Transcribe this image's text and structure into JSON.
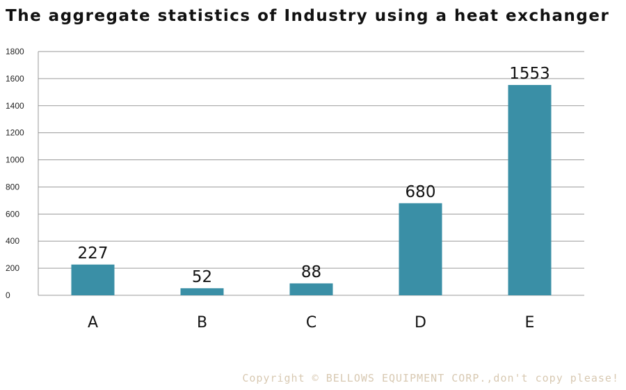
{
  "chart_data": {
    "type": "bar",
    "title": "The aggregate statistics of Industry using a heat exchanger",
    "categories": [
      "A",
      "B",
      "C",
      "D",
      "E"
    ],
    "values": [
      227,
      52,
      88,
      680,
      1553
    ],
    "data_labels": [
      "227",
      "52",
      "88",
      "680",
      "1553"
    ],
    "yticks": [
      0,
      200,
      400,
      600,
      800,
      1000,
      1200,
      1400,
      1600,
      1800
    ],
    "ylim": [
      0,
      1800
    ],
    "xlabel": "",
    "ylabel": "",
    "grid": true,
    "legend": "none",
    "bar_color": "#3a8fa6",
    "grid_color": "#9a9a9a"
  },
  "watermark": "Copyright © BELLOWS EQUIPMENT CORP.,don't copy please!"
}
